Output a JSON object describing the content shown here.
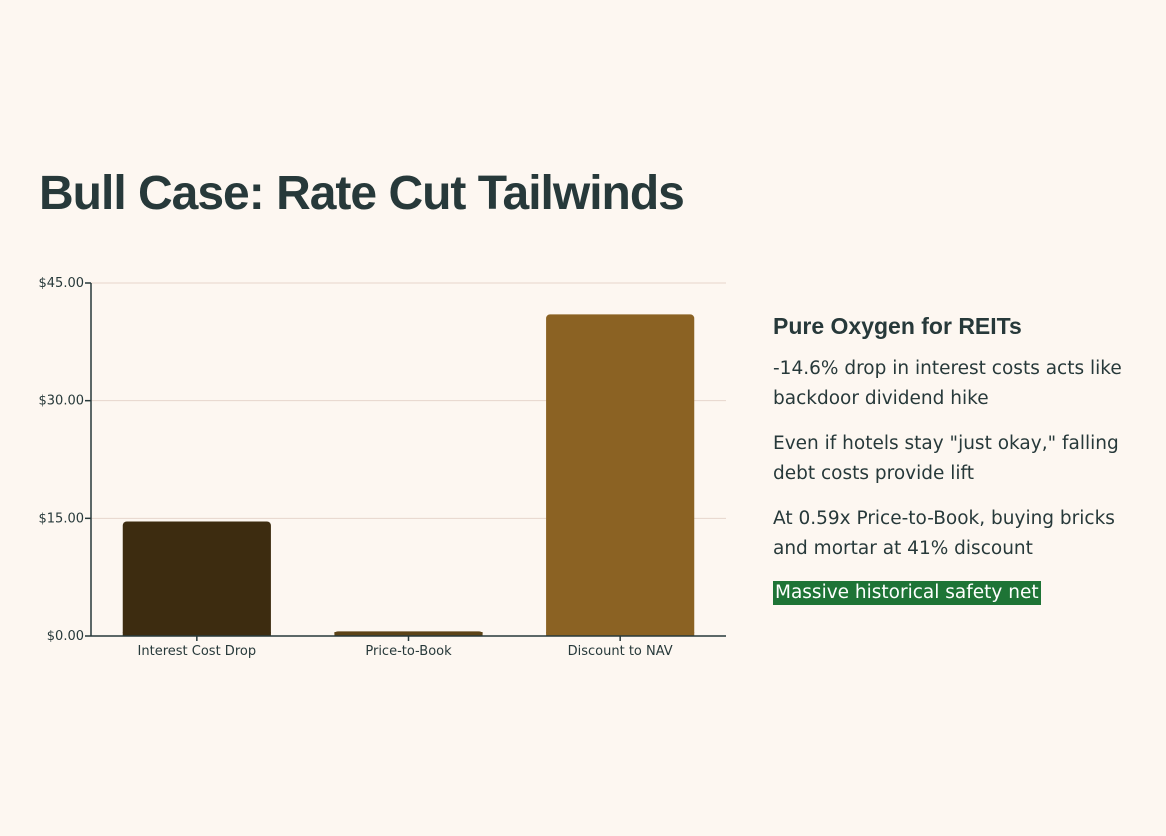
{
  "page": {
    "title": "Bull Case: Rate Cut Tailwinds"
  },
  "panel": {
    "heading": "Pure Oxygen for REITs",
    "bullets": [
      "-14.6% drop in interest costs acts like backdoor dividend hike",
      "Even if hotels stay \"just okay,\" falling debt costs provide lift",
      "At 0.59x Price-to-Book, buying bricks and mortar at 41% discount"
    ],
    "highlight": "Massive historical safety net"
  },
  "chart_data": {
    "type": "bar",
    "categories": [
      "Interest Cost Drop",
      "Price-to-Book",
      "Discount to NAV"
    ],
    "values": [
      14.6,
      0.59,
      41
    ],
    "colors": [
      "#3d2c10",
      "#5c4317",
      "#8b6223"
    ],
    "ylim": [
      0,
      45
    ],
    "yticks": [
      {
        "value": 0,
        "label": "$0.00"
      },
      {
        "value": 15,
        "label": "$15.00"
      },
      {
        "value": 30,
        "label": "$30.00"
      },
      {
        "value": 45,
        "label": "$45.00"
      }
    ],
    "grid": true,
    "title": "",
    "xlabel": "",
    "ylabel": ""
  }
}
